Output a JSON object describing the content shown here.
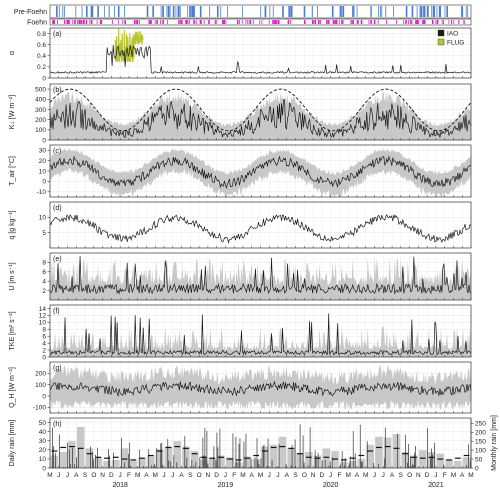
{
  "colors": {
    "iao": "#1a1a1a",
    "iao_band": "#c8c8c8",
    "flug": "#b8c430",
    "prefoehn": "#4a7bd4",
    "foehn": "#e020c8",
    "rain_month": "#c9c9c9"
  },
  "strips": [
    {
      "label": "Pre-Foehn",
      "color_key": "prefoehn"
    },
    {
      "label": "Foehn",
      "color_key": "foehn"
    }
  ],
  "legend": [
    {
      "label": "IAO",
      "color_key": "iao"
    },
    {
      "label": "FLUG",
      "color_key": "flug"
    }
  ],
  "time_axis": {
    "start": "2017-05",
    "month_letters": [
      "M",
      "J",
      "J",
      "A",
      "S",
      "O",
      "N",
      "D",
      "J",
      "F",
      "M",
      "A",
      "M",
      "J",
      "J",
      "A",
      "S",
      "O",
      "N",
      "D",
      "J",
      "F",
      "M",
      "A",
      "M",
      "J",
      "J",
      "A",
      "S",
      "O",
      "N",
      "D",
      "J",
      "F",
      "M",
      "A",
      "M",
      "J",
      "J",
      "A",
      "S",
      "O",
      "N",
      "D",
      "J",
      "F",
      "M",
      "A",
      "M"
    ],
    "years": [
      {
        "label": "2018",
        "month_index": 8
      },
      {
        "label": "2019",
        "month_index": 20
      },
      {
        "label": "2020",
        "month_index": 32
      },
      {
        "label": "2021",
        "month_index": 44
      }
    ]
  },
  "chart_data": [
    {
      "panel": "(a)",
      "type": "line",
      "ylabel": "α",
      "ylim": [
        0,
        0.9
      ],
      "yticks": [
        0,
        0.2,
        0.4,
        0.6,
        0.8
      ],
      "grid": true,
      "legend_placement": "top-right",
      "series": [
        {
          "name": "IAO",
          "baseline": 0.1
        },
        {
          "name": "FLUG",
          "months": [
            "2017-12",
            "2018-03"
          ],
          "values_range": [
            0.3,
            0.95
          ]
        }
      ]
    },
    {
      "panel": "(b)",
      "type": "line",
      "ylabel": "K↓ [W m⁻²]",
      "ylim": [
        0,
        550
      ],
      "yticks": [
        0,
        100,
        200,
        300,
        400,
        500
      ],
      "grid": true,
      "series": [
        {
          "name": "IAO",
          "daily_mean_summer": 250,
          "daily_mean_winter": 60
        },
        {
          "name": "clear-sky reference (dashed)",
          "max": 500,
          "min": 90
        }
      ]
    },
    {
      "panel": "(c)",
      "type": "line",
      "ylabel": "T_air [°C]",
      "ylim": [
        -15,
        35
      ],
      "yticks": [
        -10,
        0,
        10,
        20,
        30
      ],
      "grid": true,
      "series": [
        {
          "name": "IAO",
          "summer": 20,
          "winter": -2
        }
      ]
    },
    {
      "panel": "(d)",
      "type": "line",
      "ylabel": "q [g kg⁻¹]",
      "ylim": [
        0,
        15
      ],
      "yticks": [
        5,
        10
      ],
      "grid": true,
      "series": [
        {
          "name": "IAO",
          "summer": 10,
          "winter": 3
        }
      ]
    },
    {
      "panel": "(e)",
      "type": "line",
      "ylabel": "U [m s⁻¹]",
      "ylim": [
        0,
        10
      ],
      "yticks": [
        2,
        4,
        6,
        8
      ],
      "grid": true,
      "series": [
        {
          "name": "IAO",
          "typical": 2
        }
      ]
    },
    {
      "panel": "(f)",
      "type": "line",
      "ylabel": "TKE [m² s⁻²]",
      "ylim": [
        0,
        15
      ],
      "yticks": [
        0,
        2,
        4,
        6,
        8,
        10,
        12,
        14
      ],
      "grid": true,
      "series": [
        {
          "name": "IAO",
          "typical": 1
        }
      ]
    },
    {
      "panel": "(g)",
      "type": "line",
      "ylabel": "Q_H [W m⁻²]",
      "ylim": [
        -150,
        300
      ],
      "yticks": [
        -100,
        0,
        100,
        200
      ],
      "grid": true,
      "series": [
        {
          "name": "IAO",
          "typical": 60
        }
      ]
    },
    {
      "panel": "(h)",
      "type": "bar",
      "ylabel": "Daily rain [mm]",
      "y2label": "Monthly rain [mm]",
      "ylim": [
        0,
        55
      ],
      "yticks": [
        0,
        10,
        20,
        30,
        40,
        50
      ],
      "y2lim": [
        0,
        280
      ],
      "y2ticks": [
        0,
        50,
        100,
        150,
        200,
        250
      ],
      "grid": true,
      "monthly_rain": [
        70,
        90,
        150,
        230,
        110,
        60,
        40,
        45,
        110,
        40,
        55,
        70,
        105,
        120,
        150,
        120,
        95,
        45,
        55,
        70,
        60,
        30,
        65,
        50,
        120,
        130,
        175,
        110,
        85,
        90,
        70,
        110,
        95,
        35,
        40,
        50,
        130,
        175,
        170,
        190,
        90,
        70,
        100,
        90,
        80,
        45,
        40,
        60
      ],
      "monthly_climatology": [
        95,
        115,
        120,
        110,
        80,
        60,
        55,
        60,
        50,
        45,
        55,
        70,
        95,
        115,
        120,
        110,
        80,
        60,
        55,
        60,
        50,
        45,
        55,
        70,
        95,
        115,
        120,
        110,
        80,
        60,
        55,
        60,
        50,
        45,
        55,
        70,
        95,
        115,
        120,
        110,
        80,
        60,
        55,
        60,
        50,
        45,
        55,
        70
      ]
    }
  ]
}
